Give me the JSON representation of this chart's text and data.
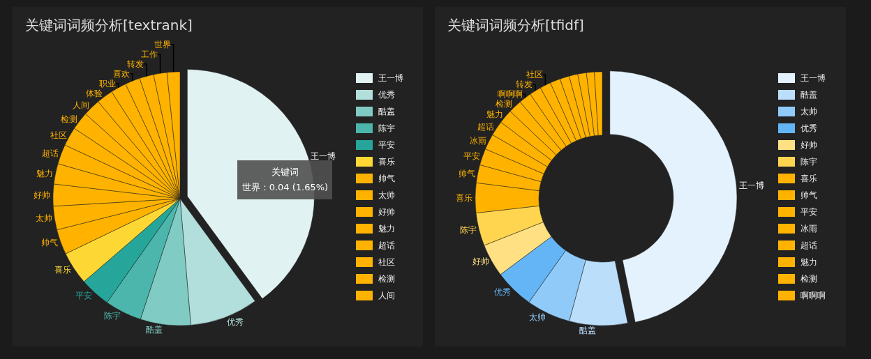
{
  "chart_data": [
    {
      "type": "pie",
      "title": "关键词词频分析[textrank]",
      "categories": [
        "王一博",
        "优秀",
        "酷盖",
        "陈宇",
        "平安",
        "喜乐",
        "帅气",
        "太帅",
        "好帅",
        "魅力",
        "超话",
        "社区",
        "检测",
        "人间",
        "体验",
        "职业",
        "喜欢",
        "转发",
        "工作",
        "世界"
      ],
      "values": [
        39.95,
        8.7,
        6.4,
        4.7,
        3.9,
        4.2,
        3.2,
        3.0,
        2.8,
        2.6,
        2.5,
        2.4,
        2.3,
        2.2,
        2.1,
        2.0,
        1.9,
        1.8,
        1.7,
        1.65
      ],
      "colors": [
        "#e0f2f1",
        "#b2dfdb",
        "#80cbc4",
        "#4db6ac",
        "#26a69a",
        "#fdd835",
        "#ffb300",
        "#ffb300",
        "#ffb300",
        "#ffb300",
        "#ffb300",
        "#ffb300",
        "#ffb300",
        "#ffb300",
        "#ffb300",
        "#ffb300",
        "#ffb300",
        "#ffb300",
        "#ffb300",
        "#ffb300"
      ],
      "annotations": [
        "关键词",
        "世界 : 0.04 (1.65%)"
      ],
      "legend": "right"
    },
    {
      "type": "donut",
      "title": "关键词词频分析[tfidf]",
      "categories": [
        "王一博",
        "酷盖",
        "太帅",
        "优秀",
        "好帅",
        "陈宇",
        "喜乐",
        "帅气",
        "平安",
        "冰雨",
        "超话",
        "魅力",
        "检测",
        "啊啊啊",
        "转发",
        "社区",
        null,
        null,
        null,
        null,
        null,
        null
      ],
      "values": [
        46.8,
        7.4,
        5.6,
        5.0,
        4.2,
        4.2,
        3.8,
        2.3,
        2.1,
        2.0,
        1.9,
        1.8,
        1.7,
        1.6,
        1.5,
        1.4,
        1.3,
        1.2,
        1.1,
        1.1,
        1.0,
        1.0
      ],
      "colors": [
        "#e3f2fd",
        "#bbdefb",
        "#90caf9",
        "#64b5f6",
        "#ffe082",
        "#ffd54f",
        "#ffb300",
        "#ffb300",
        "#ffb300",
        "#ffb300",
        "#ffb300",
        "#ffb300",
        "#ffb300",
        "#ffb300",
        "#ffb300",
        "#ffb300",
        "#ffb300",
        "#ffb300",
        "#ffb300",
        "#ffb300",
        "#ffb300",
        "#ffb300"
      ],
      "legend": "right"
    }
  ]
}
